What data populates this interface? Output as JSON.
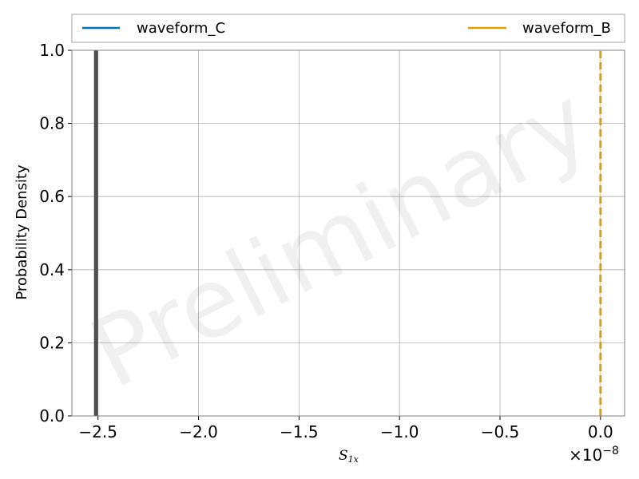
{
  "chart_data": {
    "type": "line",
    "title": "",
    "xlabel_main": "S",
    "xlabel_sub": "1x",
    "ylabel": "Probability Density",
    "xlim": [
      -2.63e-08,
      1.2e-09
    ],
    "ylim": [
      0,
      1.0
    ],
    "x_scale_label": "×10",
    "x_scale_exp": "−8",
    "grid": true,
    "legend_placement": "top, outside plot",
    "watermark": "Preliminary",
    "x_ticks": [
      {
        "value": -2.5e-08,
        "label": "−2.5"
      },
      {
        "value": -2e-08,
        "label": "−2.0"
      },
      {
        "value": -1.5e-08,
        "label": "−1.5"
      },
      {
        "value": -1e-08,
        "label": "−1.0"
      },
      {
        "value": -5e-09,
        "label": "−0.5"
      },
      {
        "value": 0.0,
        "label": "0.0"
      }
    ],
    "y_ticks": [
      {
        "value": 0.0,
        "label": "0.0"
      },
      {
        "value": 0.2,
        "label": "0.2"
      },
      {
        "value": 0.4,
        "label": "0.4"
      },
      {
        "value": 0.6,
        "label": "0.6"
      },
      {
        "value": 0.8,
        "label": "0.8"
      },
      {
        "value": 1.0,
        "label": "1.0"
      }
    ],
    "series": [
      {
        "name": "waveform_C",
        "color": "#0072b2",
        "legend_color": "#0072b2",
        "line_color": "#4d4d4d",
        "style": "solid",
        "x": [
          -2.51e-08,
          -2.51e-08
        ],
        "y": [
          0,
          1.0
        ]
      },
      {
        "name": "waveform_B",
        "color": "#e69f00",
        "legend_color": "#e69f00",
        "line_color": "#c8a040",
        "style": "dashed",
        "x": [
          0.0,
          0.0
        ],
        "y": [
          0,
          1.0
        ]
      }
    ]
  }
}
